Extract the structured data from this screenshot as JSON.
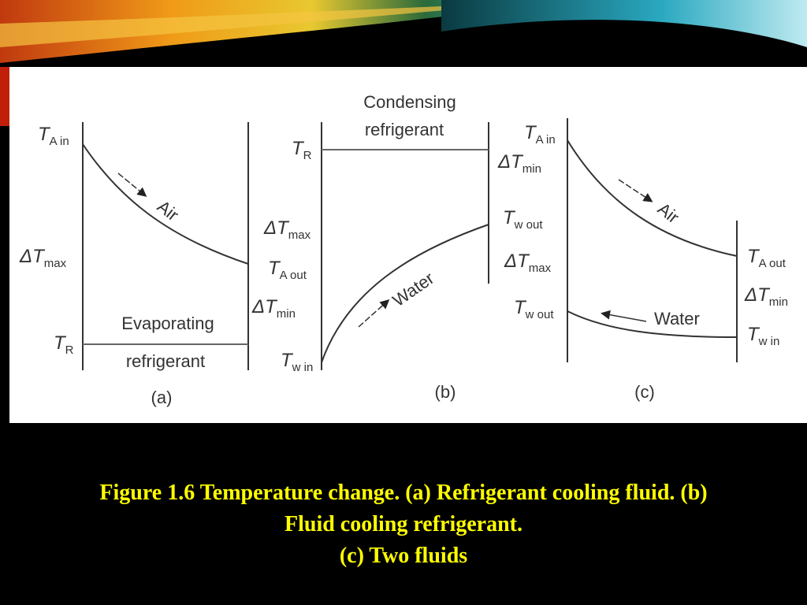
{
  "figure": {
    "panels": [
      {
        "label": "(a)",
        "labels": [
          {
            "main": "T",
            "sub": "A in"
          },
          {
            "main": "ΔT",
            "sub": "max"
          },
          {
            "main": "T",
            "sub": "R"
          },
          {
            "text": "Evaporating"
          },
          {
            "text": "refrigerant"
          },
          {
            "text": "Air"
          }
        ]
      },
      {
        "label": "(b)",
        "labels": [
          {
            "text": "Condensing"
          },
          {
            "text": "refrigerant"
          },
          {
            "main": "T",
            "sub": "R"
          },
          {
            "main": "ΔT",
            "sub": "max"
          },
          {
            "main": "T",
            "sub": "A out"
          },
          {
            "main": "ΔT",
            "sub": "min"
          },
          {
            "main": "T",
            "sub": "w in"
          },
          {
            "main": "T",
            "sub": "w out"
          },
          {
            "text": "Water"
          }
        ]
      },
      {
        "label": "(c)",
        "labels": [
          {
            "main": "T",
            "sub": "A in"
          },
          {
            "main": "ΔT",
            "sub": "min"
          },
          {
            "main": "ΔT",
            "sub": "max"
          },
          {
            "main": "T",
            "sub": "w out"
          },
          {
            "main": "T",
            "sub": "A out"
          },
          {
            "main": "ΔT",
            "sub": "min"
          },
          {
            "main": "T",
            "sub": "w in"
          },
          {
            "text": "Air"
          },
          {
            "text": "Water"
          }
        ]
      }
    ]
  },
  "caption": {
    "lines": [
      "Figure 1.6 Temperature change. (a) Refrigerant cooling fluid. (b)",
      "Fluid cooling refrigerant.",
      "(c) Two fluids"
    ]
  }
}
